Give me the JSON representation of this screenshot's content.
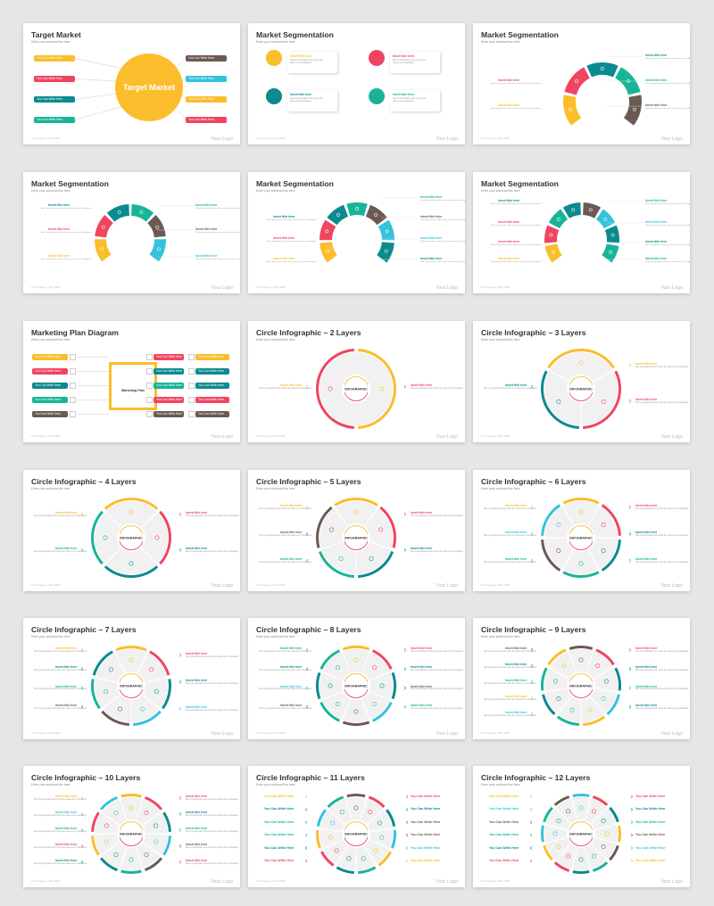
{
  "common": {
    "subtitle": "Enter your subhead line here",
    "footer": "01   Company  |  Mar 2025",
    "logo": "Your Logo",
    "insert_title": "Insert title here",
    "desc": "Sed ut perspiciatis unde omnis iste natus error voluptatem.",
    "you_can": "You Can Write Here",
    "infographic": "INFOGRAPHIC"
  },
  "colors": {
    "yellow": "#fbbd2b",
    "red": "#ef4560",
    "teal": "#0b8a8f",
    "green": "#19b497",
    "cyan": "#34c2dc",
    "brown": "#6b5a53"
  },
  "slides": [
    {
      "title": "Target Market",
      "center": "Target Market"
    },
    {
      "title": "Market Segmentation"
    },
    {
      "title": "Market Segmentation"
    },
    {
      "title": "Market Segmentation"
    },
    {
      "title": "Market Segmentation"
    },
    {
      "title": "Market Segmentation"
    },
    {
      "title": "Marketing Plan Diagram",
      "center": "Marketing Plan"
    },
    {
      "title": "Circle Infographic – 2 Layers"
    },
    {
      "title": "Circle Infographic – 3 Layers"
    },
    {
      "title": "Circle Infographic – 4 Layers"
    },
    {
      "title": "Circle Infographic – 5 Layers"
    },
    {
      "title": "Circle Infographic – 6 Layers"
    },
    {
      "title": "Circle Infographic – 7 Layers"
    },
    {
      "title": "Circle Infographic – 8 Layers"
    },
    {
      "title": "Circle Infographic – 9 Layers"
    },
    {
      "title": "Circle Infographic – 10 Layers"
    },
    {
      "title": "Circle Infographic – 11 Layers"
    },
    {
      "title": "Circle Infographic – 12 Layers"
    }
  ]
}
